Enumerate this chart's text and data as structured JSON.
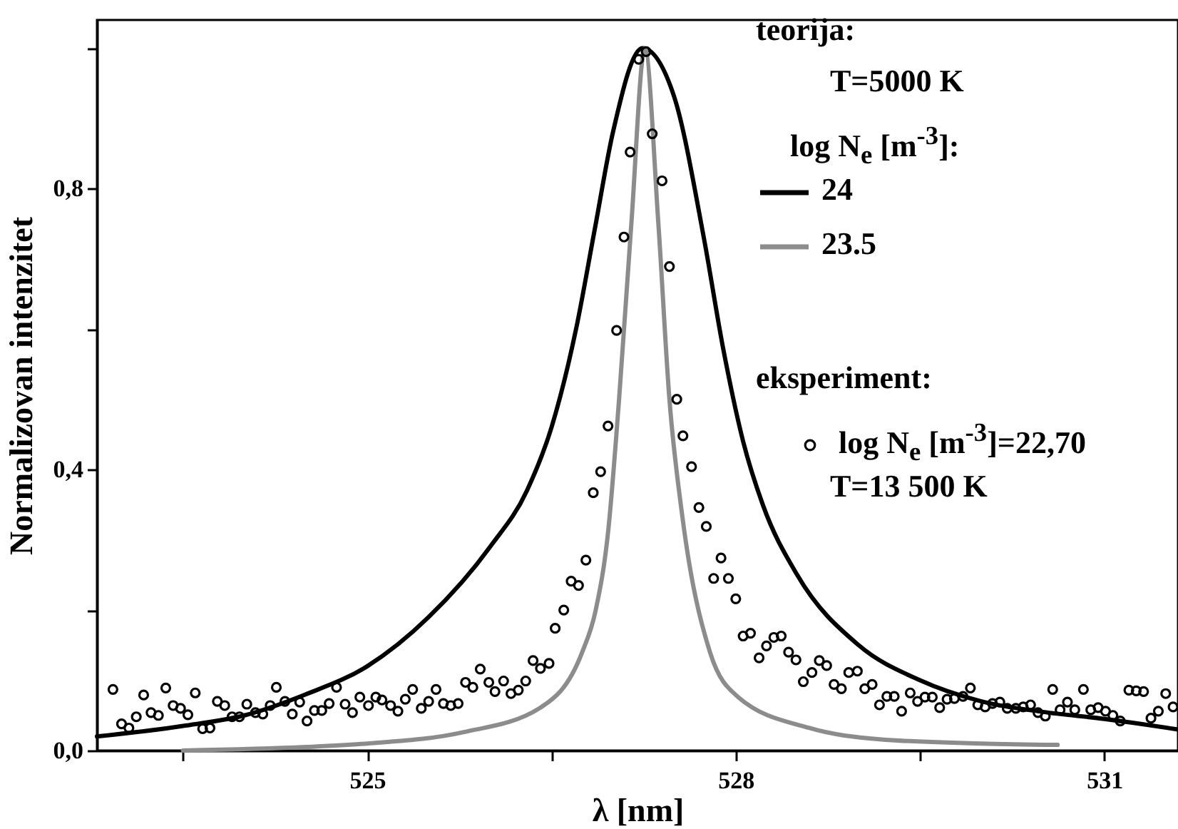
{
  "chart_data": {
    "type": "line",
    "xlabel": "λ [nm]",
    "ylabel": "Normalizovan intenzitet",
    "xlim": [
      522.8,
      531.6
    ],
    "ylim": [
      0,
      1.04
    ],
    "xticks": [
      {
        "value": 523.5,
        "label": null
      },
      {
        "value": 525,
        "label": "525"
      },
      {
        "value": 526.5,
        "label": null
      },
      {
        "value": 528,
        "label": "528"
      },
      {
        "value": 529.5,
        "label": null
      },
      {
        "value": 531,
        "label": "531"
      }
    ],
    "yticks": [
      {
        "value": 0,
        "label": "0,0"
      },
      {
        "value": 0.2,
        "label": null
      },
      {
        "value": 0.4,
        "label": "0,4"
      },
      {
        "value": 0.6,
        "label": null
      },
      {
        "value": 0.8,
        "label": "0,8"
      },
      {
        "value": 1.0,
        "label": null
      }
    ],
    "grid": false,
    "legend": "top right",
    "annotations": [
      "teorija:",
      "T=5000 K",
      "log N$_{e}$ [m$^{-3}$]:",
      "eksperiment:",
      "T=13 500 K"
    ],
    "series": [
      {
        "name": "24",
        "color": "#000000",
        "x": [
          522.8,
          523.5,
          524.0,
          524.5,
          525.0,
          525.5,
          526.0,
          526.3,
          526.5,
          526.7,
          526.85,
          527.0,
          527.24,
          527.5,
          527.74,
          527.9,
          528.06,
          528.22,
          528.5,
          529.0,
          529.5,
          530.0,
          530.5,
          531.0,
          531.6
        ],
        "values": [
          0.02,
          0.035,
          0.05,
          0.08,
          0.12,
          0.19,
          0.29,
          0.37,
          0.46,
          0.6,
          0.74,
          0.88,
          1.0,
          0.93,
          0.73,
          0.57,
          0.44,
          0.35,
          0.25,
          0.15,
          0.1,
          0.07,
          0.055,
          0.045,
          0.03
        ]
      },
      {
        "name": "23.5",
        "color": "#8c8c8c",
        "x": [
          523.5,
          524.5,
          525.0,
          525.78,
          526.4,
          526.75,
          526.86,
          526.96,
          527.05,
          527.15,
          527.26,
          527.37,
          527.46,
          527.56,
          527.79,
          528.02,
          528.6,
          529.17,
          530.0,
          530.62
        ],
        "values": [
          0.0,
          0.005,
          0.01,
          0.026,
          0.06,
          0.14,
          0.2,
          0.31,
          0.5,
          0.75,
          1.0,
          0.75,
          0.5,
          0.34,
          0.14,
          0.076,
          0.032,
          0.016,
          0.01,
          0.008
        ]
      },
      {
        "name": "log N$_{e}$ [m$^{-3}$]=22,70",
        "type": "scatter",
        "marker": "circle",
        "color": "#000000",
        "x": [
          522.93,
          523.0,
          523.06,
          523.12,
          523.18,
          523.24,
          523.3,
          523.36,
          523.42,
          523.48,
          523.54,
          523.6,
          523.66,
          523.72,
          523.78,
          523.84,
          523.9,
          523.96,
          524.02,
          524.09,
          524.15,
          524.21,
          524.26,
          524.33,
          524.39,
          524.45,
          524.51,
          524.57,
          524.63,
          524.69,
          524.75,
          524.82,
          524.88,
          524.94,
          525.01,
          525.07,
          525.12,
          525.19,
          525.25,
          525.31,
          525.37,
          525.44,
          525.5,
          525.56,
          525.62,
          525.68,
          525.74,
          525.8,
          525.86,
          525.92,
          525.99,
          526.04,
          526.11,
          526.17,
          526.23,
          526.29,
          526.35,
          526.41,
          526.48,
          526.53,
          526.6,
          526.66,
          526.72,
          526.78,
          526.84,
          526.9,
          526.96,
          527.03,
          527.09,
          527.14,
          527.21,
          527.27,
          527.32,
          527.4,
          527.46,
          527.52,
          527.57,
          527.64,
          527.7,
          527.76,
          527.82,
          527.88,
          527.94,
          528.0,
          528.06,
          528.12,
          528.19,
          528.25,
          528.31,
          528.37,
          528.43,
          528.49,
          528.55,
          528.62,
          528.68,
          528.74,
          528.8,
          528.86,
          528.92,
          528.99,
          529.05,
          529.11,
          529.17,
          529.23,
          529.29,
          529.35,
          529.42,
          529.48,
          529.54,
          529.6,
          529.66,
          529.72,
          529.78,
          529.85,
          529.91,
          529.97,
          530.03,
          530.09,
          530.15,
          530.21,
          530.28,
          530.34,
          530.4,
          530.46,
          530.52,
          530.58,
          530.64,
          530.7,
          530.76,
          530.83,
          530.89,
          530.95,
          531.01,
          531.07,
          531.13,
          531.2,
          531.26,
          531.32,
          531.38,
          531.44,
          531.5,
          531.56
        ],
        "values": [
          0.087,
          0.038,
          0.032,
          0.048,
          0.079,
          0.054,
          0.05,
          0.089,
          0.064,
          0.06,
          0.051,
          0.082,
          0.031,
          0.032,
          0.07,
          0.064,
          0.048,
          0.048,
          0.066,
          0.054,
          0.052,
          0.064,
          0.09,
          0.07,
          0.052,
          0.069,
          0.042,
          0.057,
          0.057,
          0.067,
          0.09,
          0.066,
          0.054,
          0.076,
          0.064,
          0.076,
          0.072,
          0.064,
          0.056,
          0.073,
          0.087,
          0.06,
          0.07,
          0.087,
          0.067,
          0.064,
          0.067,
          0.097,
          0.09,
          0.116,
          0.097,
          0.084,
          0.099,
          0.081,
          0.086,
          0.099,
          0.128,
          0.117,
          0.124,
          0.174,
          0.2,
          0.241,
          0.235,
          0.271,
          0.367,
          0.397,
          0.462,
          0.598,
          0.731,
          0.852,
          0.984,
          0.995,
          0.878,
          0.811,
          0.689,
          0.5,
          0.448,
          0.404,
          0.346,
          0.319,
          0.245,
          0.274,
          0.245,
          0.216,
          0.163,
          0.167,
          0.132,
          0.149,
          0.161,
          0.163,
          0.14,
          0.129,
          0.098,
          0.111,
          0.128,
          0.121,
          0.094,
          0.088,
          0.111,
          0.113,
          0.088,
          0.094,
          0.065,
          0.077,
          0.077,
          0.056,
          0.082,
          0.07,
          0.076,
          0.076,
          0.061,
          0.073,
          0.074,
          0.077,
          0.089,
          0.065,
          0.062,
          0.067,
          0.069,
          0.06,
          0.06,
          0.062,
          0.065,
          0.054,
          0.049,
          0.087,
          0.058,
          0.069,
          0.058,
          0.087,
          0.058,
          0.061,
          0.056,
          0.05,
          0.042,
          0.086,
          0.085,
          0.084,
          0.046,
          0.056,
          0.081,
          0.062
        ]
      }
    ]
  }
}
